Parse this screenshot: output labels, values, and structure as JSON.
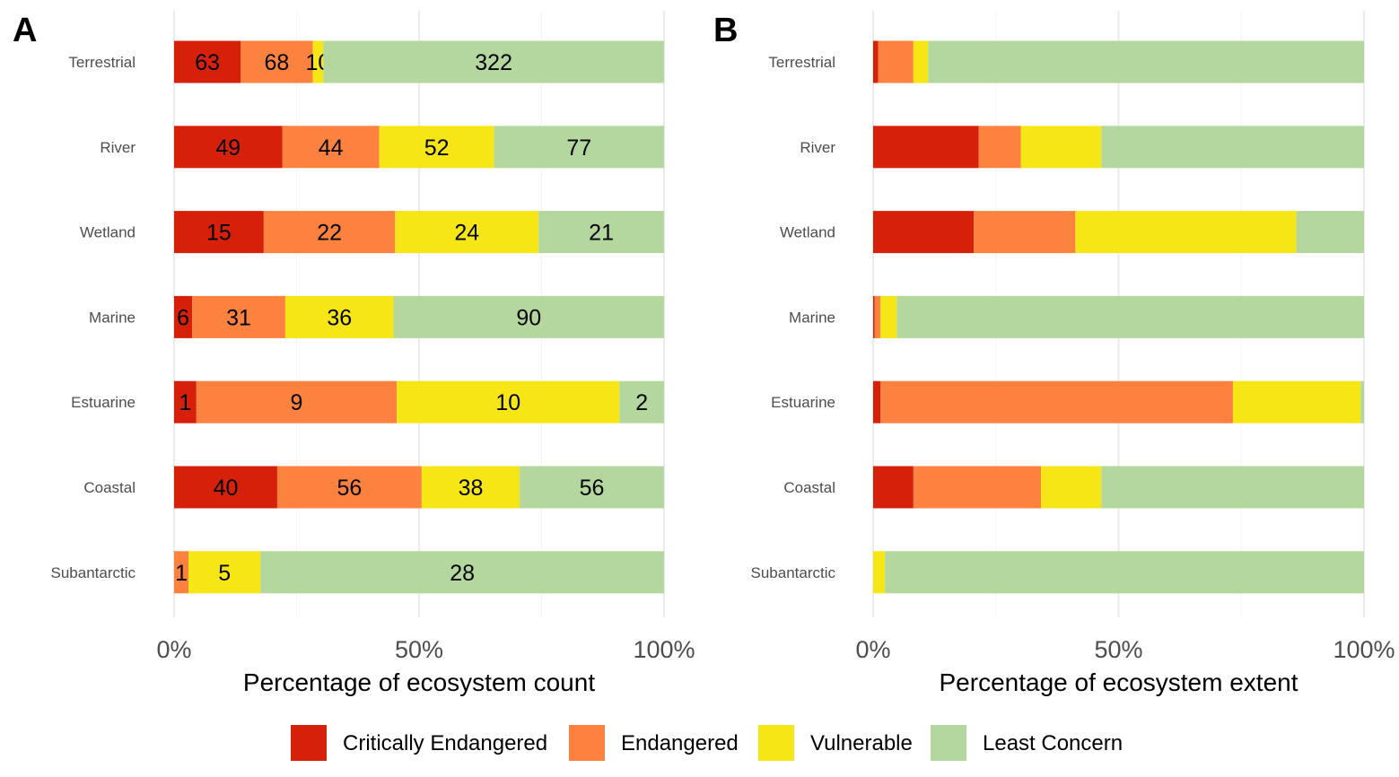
{
  "legend": {
    "items": [
      {
        "label": "Critically Endangered",
        "color": "#D7200A"
      },
      {
        "label": "Endangered",
        "color": "#FD8240"
      },
      {
        "label": "Vulnerable",
        "color": "#F7E615"
      },
      {
        "label": "Least Concern",
        "color": "#B4D79E"
      }
    ]
  },
  "chart_data": [
    {
      "panel_label": "A",
      "type": "bar",
      "orientation": "horizontal",
      "stacked": true,
      "normalized": true,
      "xlabel": "Percentage of ecosystem count",
      "xlim": [
        0,
        1
      ],
      "x_ticks": [
        "0%",
        "50%",
        "100%"
      ],
      "categories": [
        "Terrestrial",
        "River",
        "Wetland",
        "Marine",
        "Estuarine",
        "Coastal",
        "Subantarctic"
      ],
      "series": [
        {
          "name": "Critically Endangered",
          "color": "#D7200A",
          "values": [
            63,
            49,
            15,
            6,
            1,
            40,
            0
          ]
        },
        {
          "name": "Endangered",
          "color": "#FD8240",
          "values": [
            68,
            44,
            22,
            31,
            9,
            56,
            1
          ]
        },
        {
          "name": "Vulnerable",
          "color": "#F7E615",
          "values": [
            10,
            52,
            24,
            36,
            10,
            38,
            5
          ]
        },
        {
          "name": "Least Concern",
          "color": "#B4D79E",
          "values": [
            322,
            77,
            21,
            90,
            2,
            56,
            28
          ]
        }
      ],
      "show_value_labels": true,
      "grid": "vertical",
      "legend_position": "bottom"
    },
    {
      "panel_label": "B",
      "type": "bar",
      "orientation": "horizontal",
      "stacked": true,
      "normalized": true,
      "xlabel": "Percentage of ecosystem extent",
      "xlim": [
        0,
        1
      ],
      "x_ticks": [
        "0%",
        "50%",
        "100%"
      ],
      "categories": [
        "Terrestrial",
        "River",
        "Wetland",
        "Marine",
        "Estuarine",
        "Coastal",
        "Subantarctic"
      ],
      "series": [
        {
          "name": "Critically Endangered",
          "color": "#D7200A",
          "values": [
            1.0,
            21.5,
            20.5,
            0.3,
            1.5,
            8.2,
            0
          ]
        },
        {
          "name": "Endangered",
          "color": "#FD8240",
          "values": [
            7.2,
            8.6,
            20.7,
            1.2,
            71.8,
            26.0,
            0
          ]
        },
        {
          "name": "Vulnerable",
          "color": "#F7E615",
          "values": [
            3.0,
            16.4,
            45.0,
            3.3,
            26.0,
            12.3,
            2.4
          ]
        },
        {
          "name": "Least Concern",
          "color": "#B4D79E",
          "values": [
            88.8,
            53.5,
            13.8,
            95.2,
            0.7,
            53.5,
            97.6
          ]
        }
      ],
      "show_value_labels": false,
      "grid": "vertical",
      "legend_position": "bottom"
    }
  ]
}
